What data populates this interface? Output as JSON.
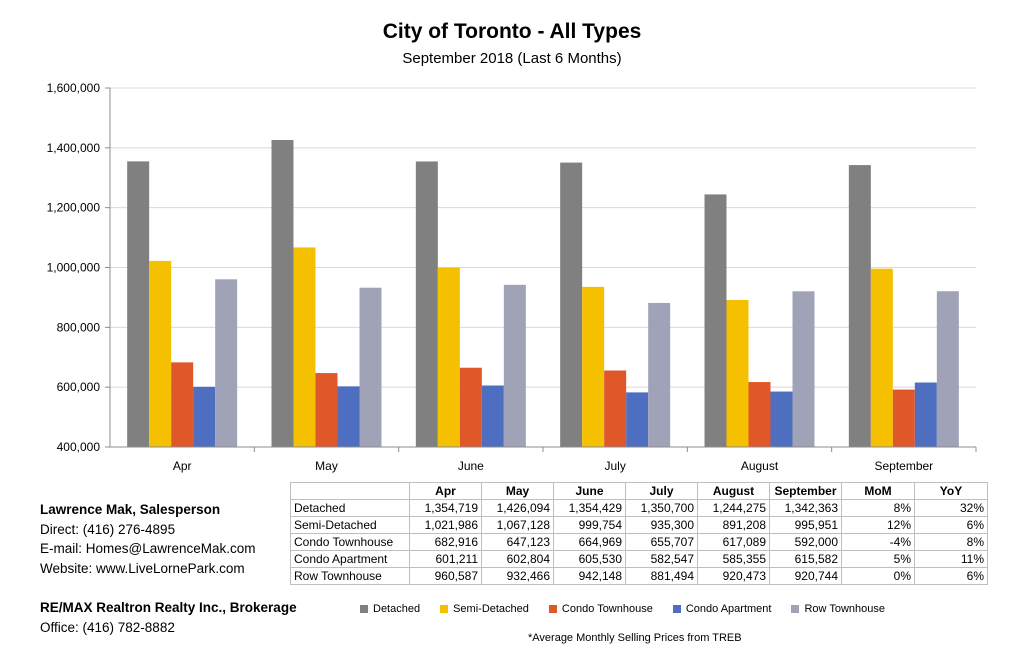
{
  "chart_data": {
    "type": "bar",
    "title": "City of Toronto - All Types",
    "subtitle": "September 2018 (Last 6 Months)",
    "categories": [
      "Apr",
      "May",
      "June",
      "July",
      "August",
      "September"
    ],
    "ylim": [
      400000,
      1600000
    ],
    "yticks": [
      "400,000",
      "600,000",
      "800,000",
      "1,000,000",
      "1,200,000",
      "1,400,000",
      "1,600,000"
    ],
    "grid": true,
    "legend_position": "bottom",
    "series": [
      {
        "name": "Detached",
        "color": "#808080",
        "values": [
          1354719,
          1426094,
          1354429,
          1350700,
          1244275,
          1342363
        ]
      },
      {
        "name": "Semi-Detached",
        "color": "#f5c000",
        "values": [
          1021986,
          1067128,
          999754,
          935300,
          891208,
          995951
        ]
      },
      {
        "name": "Condo Townhouse",
        "color": "#e0572a",
        "values": [
          682916,
          647123,
          664969,
          655707,
          617089,
          592000
        ]
      },
      {
        "name": "Condo Apartment",
        "color": "#4e6fbf",
        "values": [
          601211,
          602804,
          605530,
          582547,
          585355,
          615582
        ]
      },
      {
        "name": "Row Townhouse",
        "color": "#a0a3b8",
        "values": [
          960587,
          932466,
          942148,
          881494,
          920473,
          920744
        ]
      }
    ]
  },
  "table": {
    "headers": [
      "Apr",
      "May",
      "June",
      "July",
      "August",
      "September",
      "MoM",
      "YoY"
    ],
    "rows": [
      {
        "label": "Detached",
        "cells": [
          "1,354,719",
          "1,426,094",
          "1,354,429",
          "1,350,700",
          "1,244,275",
          "1,342,363",
          "8%",
          "32%"
        ]
      },
      {
        "label": "Semi-Detached",
        "cells": [
          "1,021,986",
          "1,067,128",
          "999,754",
          "935,300",
          "891,208",
          "995,951",
          "12%",
          "6%"
        ]
      },
      {
        "label": "Condo Townhouse",
        "cells": [
          "682,916",
          "647,123",
          "664,969",
          "655,707",
          "617,089",
          "592,000",
          "-4%",
          "8%"
        ]
      },
      {
        "label": "Condo Apartment",
        "cells": [
          "601,211",
          "602,804",
          "605,530",
          "582,547",
          "585,355",
          "615,582",
          "5%",
          "11%"
        ]
      },
      {
        "label": "Row Townhouse",
        "cells": [
          "960,587",
          "932,466",
          "942,148",
          "881,494",
          "920,473",
          "920,744",
          "0%",
          "6%"
        ]
      }
    ]
  },
  "contact": {
    "name": "Lawrence Mak, Salesperson",
    "direct": "Direct:  (416) 276-4895",
    "email": "E-mail:  Homes@LawrenceMak.com",
    "website": "Website: www.LiveLornePark.com"
  },
  "company": {
    "name": "RE/MAX Realtron Realty Inc., Brokerage",
    "office": "Office: (416) 782-8882"
  },
  "footnote": "*Average Monthly Selling Prices  from TREB"
}
